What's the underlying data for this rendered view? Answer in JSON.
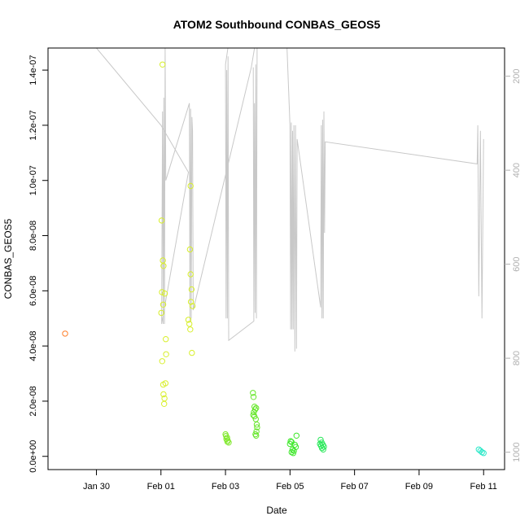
{
  "chart_data": {
    "type": "scatter",
    "title": "ATOM2 Southbound CONBAS_GEOS5",
    "xlabel": "Date",
    "ylabel": "CONBAS_GEOS5",
    "x_unit": "days since Jan 30",
    "xlim": [
      -1.5,
      12.65
    ],
    "ylim": [
      -4.8e-09,
      1.48e-07
    ],
    "x_ticks": [
      {
        "value": 0,
        "label": "Jan 30"
      },
      {
        "value": 2,
        "label": "Feb 01"
      },
      {
        "value": 4,
        "label": "Feb 03"
      },
      {
        "value": 6,
        "label": "Feb 05"
      },
      {
        "value": 8,
        "label": "Feb 07"
      },
      {
        "value": 10,
        "label": "Feb 09"
      },
      {
        "value": 12,
        "label": "Feb 11"
      }
    ],
    "y_ticks": [
      {
        "value": 0,
        "label": "0.0e+00"
      },
      {
        "value": 2e-08,
        "label": "2.0e-08"
      },
      {
        "value": 4e-08,
        "label": "4.0e-08"
      },
      {
        "value": 6e-08,
        "label": "6.0e-08"
      },
      {
        "value": 8e-08,
        "label": "8.0e-08"
      },
      {
        "value": 1e-07,
        "label": "1.0e-07"
      },
      {
        "value": 1.2e-07,
        "label": "1.2e-07"
      },
      {
        "value": 1.4e-07,
        "label": "1.4e-07"
      }
    ],
    "y2_lim": [
      1037,
      140
    ],
    "y2_ticks": [
      {
        "value": 200,
        "label": "200"
      },
      {
        "value": 400,
        "label": "400"
      },
      {
        "value": 600,
        "label": "600"
      },
      {
        "value": 800,
        "label": "800"
      },
      {
        "value": 1000,
        "label": "1000"
      }
    ],
    "grid": false,
    "points": [
      {
        "x": -0.97,
        "y": 4.45e-08,
        "color": "#ff7f2a"
      },
      {
        "x": 2.05,
        "y": 1.42e-07,
        "color": "#d8ef2a"
      },
      {
        "x": 2.02,
        "y": 8.55e-08,
        "color": "#d8ef2a"
      },
      {
        "x": 2.06,
        "y": 7.1e-08,
        "color": "#d8ef2a"
      },
      {
        "x": 2.08,
        "y": 6.9e-08,
        "color": "#d8ef2a"
      },
      {
        "x": 2.03,
        "y": 5.95e-08,
        "color": "#d8ef2a"
      },
      {
        "x": 2.12,
        "y": 5.9e-08,
        "color": "#d8ef2a"
      },
      {
        "x": 2.07,
        "y": 5.5e-08,
        "color": "#d8ef2a"
      },
      {
        "x": 2.01,
        "y": 5.2e-08,
        "color": "#d8ef2a"
      },
      {
        "x": 2.15,
        "y": 4.25e-08,
        "color": "#d8ef2a"
      },
      {
        "x": 2.16,
        "y": 3.7e-08,
        "color": "#d8ef2a"
      },
      {
        "x": 2.04,
        "y": 3.45e-08,
        "color": "#d8ef2a"
      },
      {
        "x": 2.14,
        "y": 2.65e-08,
        "color": "#d8ef2a"
      },
      {
        "x": 2.07,
        "y": 2.6e-08,
        "color": "#d8ef2a"
      },
      {
        "x": 2.08,
        "y": 2.25e-08,
        "color": "#d8ef2a"
      },
      {
        "x": 2.11,
        "y": 2.1e-08,
        "color": "#d8ef2a"
      },
      {
        "x": 2.1,
        "y": 1.9e-08,
        "color": "#d8ef2a"
      },
      {
        "x": 2.92,
        "y": 9.8e-08,
        "color": "#d8ef2a"
      },
      {
        "x": 2.9,
        "y": 7.5e-08,
        "color": "#d8ef2a"
      },
      {
        "x": 2.92,
        "y": 6.6e-08,
        "color": "#d8ef2a"
      },
      {
        "x": 2.95,
        "y": 6.05e-08,
        "color": "#d8ef2a"
      },
      {
        "x": 2.93,
        "y": 5.6e-08,
        "color": "#d8ef2a"
      },
      {
        "x": 2.98,
        "y": 5.45e-08,
        "color": "#d8ef2a"
      },
      {
        "x": 2.85,
        "y": 4.95e-08,
        "color": "#d8ef2a"
      },
      {
        "x": 2.88,
        "y": 4.8e-08,
        "color": "#d8ef2a"
      },
      {
        "x": 2.91,
        "y": 4.6e-08,
        "color": "#d8ef2a"
      },
      {
        "x": 2.96,
        "y": 3.75e-08,
        "color": "#d8ef2a"
      },
      {
        "x": 4.0,
        "y": 8e-09,
        "color": "#7fe82a"
      },
      {
        "x": 4.02,
        "y": 7.4e-09,
        "color": "#7fe82a"
      },
      {
        "x": 4.05,
        "y": 6.8e-09,
        "color": "#7fe82a"
      },
      {
        "x": 4.03,
        "y": 6.3e-09,
        "color": "#7fe82a"
      },
      {
        "x": 4.07,
        "y": 5.8e-09,
        "color": "#7fe82a"
      },
      {
        "x": 4.06,
        "y": 5.3e-09,
        "color": "#7fe82a"
      },
      {
        "x": 4.1,
        "y": 5e-09,
        "color": "#7fe82a"
      },
      {
        "x": 4.85,
        "y": 2.3e-08,
        "color": "#66e62a"
      },
      {
        "x": 4.87,
        "y": 2.15e-08,
        "color": "#66e62a"
      },
      {
        "x": 4.9,
        "y": 1.8e-08,
        "color": "#66e62a"
      },
      {
        "x": 4.95,
        "y": 1.75e-08,
        "color": "#66e62a"
      },
      {
        "x": 4.92,
        "y": 1.7e-08,
        "color": "#66e62a"
      },
      {
        "x": 4.88,
        "y": 1.6e-08,
        "color": "#66e62a"
      },
      {
        "x": 4.86,
        "y": 1.5e-08,
        "color": "#66e62a"
      },
      {
        "x": 4.9,
        "y": 1.45e-08,
        "color": "#66e62a"
      },
      {
        "x": 4.94,
        "y": 1.35e-08,
        "color": "#66e62a"
      },
      {
        "x": 4.97,
        "y": 1.15e-08,
        "color": "#66e62a"
      },
      {
        "x": 4.98,
        "y": 1.05e-08,
        "color": "#66e62a"
      },
      {
        "x": 4.96,
        "y": 9e-09,
        "color": "#66e62a"
      },
      {
        "x": 4.93,
        "y": 8e-09,
        "color": "#66e62a"
      },
      {
        "x": 4.95,
        "y": 7.5e-09,
        "color": "#66e62a"
      },
      {
        "x": 6.02,
        "y": 5.5e-09,
        "color": "#3ee82a"
      },
      {
        "x": 6.05,
        "y": 5.2e-09,
        "color": "#3ee82a"
      },
      {
        "x": 6.0,
        "y": 4.5e-09,
        "color": "#3ee82a"
      },
      {
        "x": 6.2,
        "y": 7.5e-09,
        "color": "#3ee82a"
      },
      {
        "x": 6.15,
        "y": 4.2e-09,
        "color": "#3ee82a"
      },
      {
        "x": 6.18,
        "y": 3.4e-09,
        "color": "#3ee82a"
      },
      {
        "x": 6.08,
        "y": 2.5e-09,
        "color": "#3ee82a"
      },
      {
        "x": 6.12,
        "y": 2e-09,
        "color": "#3ee82a"
      },
      {
        "x": 6.05,
        "y": 1.5e-09,
        "color": "#3ee82a"
      },
      {
        "x": 6.1,
        "y": 1.2e-09,
        "color": "#3ee82a"
      },
      {
        "x": 6.95,
        "y": 6e-09,
        "color": "#2ae85a"
      },
      {
        "x": 6.98,
        "y": 5e-09,
        "color": "#2ae85a"
      },
      {
        "x": 6.93,
        "y": 4.5e-09,
        "color": "#2ae85a"
      },
      {
        "x": 7.02,
        "y": 4.2e-09,
        "color": "#2ae85a"
      },
      {
        "x": 6.96,
        "y": 3.8e-09,
        "color": "#2ae85a"
      },
      {
        "x": 7.05,
        "y": 3.5e-09,
        "color": "#2ae85a"
      },
      {
        "x": 6.99,
        "y": 3e-09,
        "color": "#2ae85a"
      },
      {
        "x": 7.03,
        "y": 2.5e-09,
        "color": "#2ae85a"
      },
      {
        "x": 11.85,
        "y": 2.5e-09,
        "color": "#2ae8c8"
      },
      {
        "x": 11.9,
        "y": 2e-09,
        "color": "#2ae8c8"
      },
      {
        "x": 11.95,
        "y": 1.5e-09,
        "color": "#2ae8c8"
      },
      {
        "x": 12.0,
        "y": 1.2e-09,
        "color": "#2ae8c8"
      }
    ],
    "line_color": "#c8c8c8",
    "line": [
      [
        -1.5,
        1.55e-07
      ],
      [
        0.0,
        1.48e-07
      ],
      [
        2.0,
        1.2e-07
      ],
      [
        2.85,
        1.03e-07
      ],
      [
        2.02,
        4.8e-08
      ],
      [
        2.05,
        1.25e-07
      ],
      [
        2.07,
        4.8e-08
      ],
      [
        2.09,
        1.3e-07
      ],
      [
        2.11,
        4.8e-08
      ],
      [
        2.13,
        1.48e-07
      ],
      [
        2.15,
        1e-07
      ],
      [
        2.88,
        1.28e-07
      ],
      [
        2.9,
        4.9e-08
      ],
      [
        2.92,
        1.26e-07
      ],
      [
        2.94,
        5e-08
      ],
      [
        2.96,
        1.23e-07
      ],
      [
        2.98,
        1.18e-07
      ],
      [
        3.0,
        5.3e-08
      ],
      [
        4.8,
        1.41e-07
      ],
      [
        5.0,
        1.55e-07
      ],
      [
        4.1,
        1.5e-07
      ],
      [
        4.0,
        1.42e-07
      ],
      [
        4.02,
        5e-08
      ],
      [
        4.04,
        1.4e-07
      ],
      [
        4.06,
        5e-08
      ],
      [
        4.08,
        1.45e-07
      ],
      [
        4.1,
        4.2e-08
      ],
      [
        4.88,
        4.9e-08
      ],
      [
        4.86,
        1.41e-07
      ],
      [
        4.88,
        5.3e-08
      ],
      [
        4.9,
        1.28e-07
      ],
      [
        4.92,
        5.2e-08
      ],
      [
        4.94,
        1.42e-07
      ],
      [
        4.96,
        5e-08
      ],
      [
        4.98,
        1.48e-07
      ],
      [
        5.0,
        1.55e-07
      ],
      [
        5.9,
        1.5e-07
      ],
      [
        6.0,
        1.2e-07
      ],
      [
        6.02,
        4.6e-08
      ],
      [
        6.04,
        1.21e-07
      ],
      [
        6.06,
        4.6e-08
      ],
      [
        6.08,
        1.18e-07
      ],
      [
        6.1,
        4.6e-08
      ],
      [
        6.12,
        1.2e-07
      ],
      [
        6.15,
        3.8e-08
      ],
      [
        6.17,
        1.2e-07
      ],
      [
        6.2,
        3.9e-08
      ],
      [
        6.22,
        1.15e-07
      ],
      [
        6.95,
        5.4e-08
      ],
      [
        6.97,
        1.2e-07
      ],
      [
        6.99,
        5e-08
      ],
      [
        7.01,
        1.22e-07
      ],
      [
        7.03,
        5e-08
      ],
      [
        7.05,
        1.25e-07
      ],
      [
        7.07,
        8.1e-08
      ],
      [
        7.09,
        1.14e-07
      ],
      [
        11.8,
        1.06e-07
      ],
      [
        11.82,
        1.2e-07
      ],
      [
        11.85,
        5.8e-08
      ],
      [
        11.9,
        1.18e-07
      ],
      [
        11.95,
        5e-08
      ],
      [
        12.0,
        1.15e-07
      ]
    ]
  }
}
